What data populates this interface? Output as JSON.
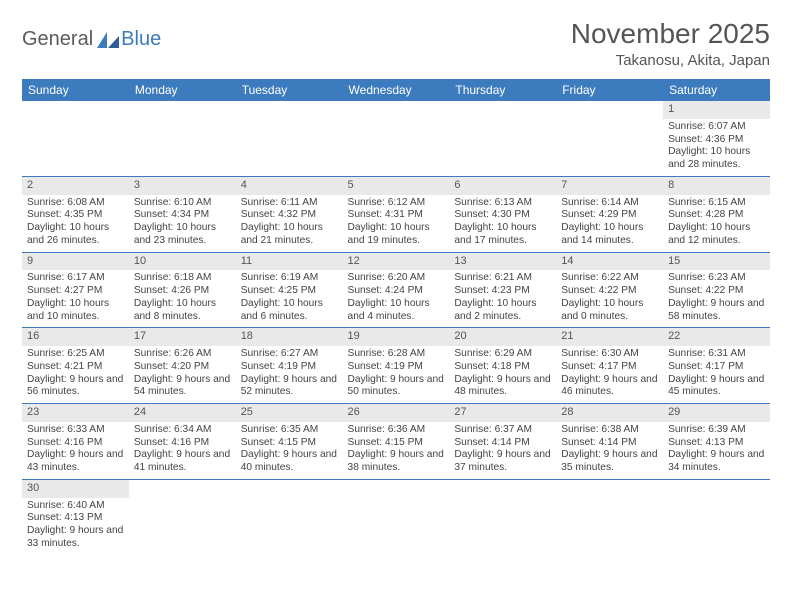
{
  "logo": {
    "text1": "General",
    "text2": "Blue"
  },
  "title": "November 2025",
  "location": "Takanosu, Akita, Japan",
  "colors": {
    "header_bg": "#3d7bbf",
    "header_fg": "#ffffff",
    "daynum_bg": "#e9e9e9",
    "border": "#3d7bbf",
    "text": "#444444",
    "title_color": "#555555"
  },
  "weekdays": [
    "Sunday",
    "Monday",
    "Tuesday",
    "Wednesday",
    "Thursday",
    "Friday",
    "Saturday"
  ],
  "weeks": [
    [
      null,
      null,
      null,
      null,
      null,
      null,
      {
        "n": 1,
        "sr": "6:07 AM",
        "ss": "4:36 PM",
        "dl": "10 hours and 28 minutes."
      }
    ],
    [
      {
        "n": 2,
        "sr": "6:08 AM",
        "ss": "4:35 PM",
        "dl": "10 hours and 26 minutes."
      },
      {
        "n": 3,
        "sr": "6:10 AM",
        "ss": "4:34 PM",
        "dl": "10 hours and 23 minutes."
      },
      {
        "n": 4,
        "sr": "6:11 AM",
        "ss": "4:32 PM",
        "dl": "10 hours and 21 minutes."
      },
      {
        "n": 5,
        "sr": "6:12 AM",
        "ss": "4:31 PM",
        "dl": "10 hours and 19 minutes."
      },
      {
        "n": 6,
        "sr": "6:13 AM",
        "ss": "4:30 PM",
        "dl": "10 hours and 17 minutes."
      },
      {
        "n": 7,
        "sr": "6:14 AM",
        "ss": "4:29 PM",
        "dl": "10 hours and 14 minutes."
      },
      {
        "n": 8,
        "sr": "6:15 AM",
        "ss": "4:28 PM",
        "dl": "10 hours and 12 minutes."
      }
    ],
    [
      {
        "n": 9,
        "sr": "6:17 AM",
        "ss": "4:27 PM",
        "dl": "10 hours and 10 minutes."
      },
      {
        "n": 10,
        "sr": "6:18 AM",
        "ss": "4:26 PM",
        "dl": "10 hours and 8 minutes."
      },
      {
        "n": 11,
        "sr": "6:19 AM",
        "ss": "4:25 PM",
        "dl": "10 hours and 6 minutes."
      },
      {
        "n": 12,
        "sr": "6:20 AM",
        "ss": "4:24 PM",
        "dl": "10 hours and 4 minutes."
      },
      {
        "n": 13,
        "sr": "6:21 AM",
        "ss": "4:23 PM",
        "dl": "10 hours and 2 minutes."
      },
      {
        "n": 14,
        "sr": "6:22 AM",
        "ss": "4:22 PM",
        "dl": "10 hours and 0 minutes."
      },
      {
        "n": 15,
        "sr": "6:23 AM",
        "ss": "4:22 PM",
        "dl": "9 hours and 58 minutes."
      }
    ],
    [
      {
        "n": 16,
        "sr": "6:25 AM",
        "ss": "4:21 PM",
        "dl": "9 hours and 56 minutes."
      },
      {
        "n": 17,
        "sr": "6:26 AM",
        "ss": "4:20 PM",
        "dl": "9 hours and 54 minutes."
      },
      {
        "n": 18,
        "sr": "6:27 AM",
        "ss": "4:19 PM",
        "dl": "9 hours and 52 minutes."
      },
      {
        "n": 19,
        "sr": "6:28 AM",
        "ss": "4:19 PM",
        "dl": "9 hours and 50 minutes."
      },
      {
        "n": 20,
        "sr": "6:29 AM",
        "ss": "4:18 PM",
        "dl": "9 hours and 48 minutes."
      },
      {
        "n": 21,
        "sr": "6:30 AM",
        "ss": "4:17 PM",
        "dl": "9 hours and 46 minutes."
      },
      {
        "n": 22,
        "sr": "6:31 AM",
        "ss": "4:17 PM",
        "dl": "9 hours and 45 minutes."
      }
    ],
    [
      {
        "n": 23,
        "sr": "6:33 AM",
        "ss": "4:16 PM",
        "dl": "9 hours and 43 minutes."
      },
      {
        "n": 24,
        "sr": "6:34 AM",
        "ss": "4:16 PM",
        "dl": "9 hours and 41 minutes."
      },
      {
        "n": 25,
        "sr": "6:35 AM",
        "ss": "4:15 PM",
        "dl": "9 hours and 40 minutes."
      },
      {
        "n": 26,
        "sr": "6:36 AM",
        "ss": "4:15 PM",
        "dl": "9 hours and 38 minutes."
      },
      {
        "n": 27,
        "sr": "6:37 AM",
        "ss": "4:14 PM",
        "dl": "9 hours and 37 minutes."
      },
      {
        "n": 28,
        "sr": "6:38 AM",
        "ss": "4:14 PM",
        "dl": "9 hours and 35 minutes."
      },
      {
        "n": 29,
        "sr": "6:39 AM",
        "ss": "4:13 PM",
        "dl": "9 hours and 34 minutes."
      }
    ],
    [
      {
        "n": 30,
        "sr": "6:40 AM",
        "ss": "4:13 PM",
        "dl": "9 hours and 33 minutes."
      },
      null,
      null,
      null,
      null,
      null,
      null
    ]
  ],
  "labels": {
    "sunrise": "Sunrise:",
    "sunset": "Sunset:",
    "daylight": "Daylight:"
  }
}
